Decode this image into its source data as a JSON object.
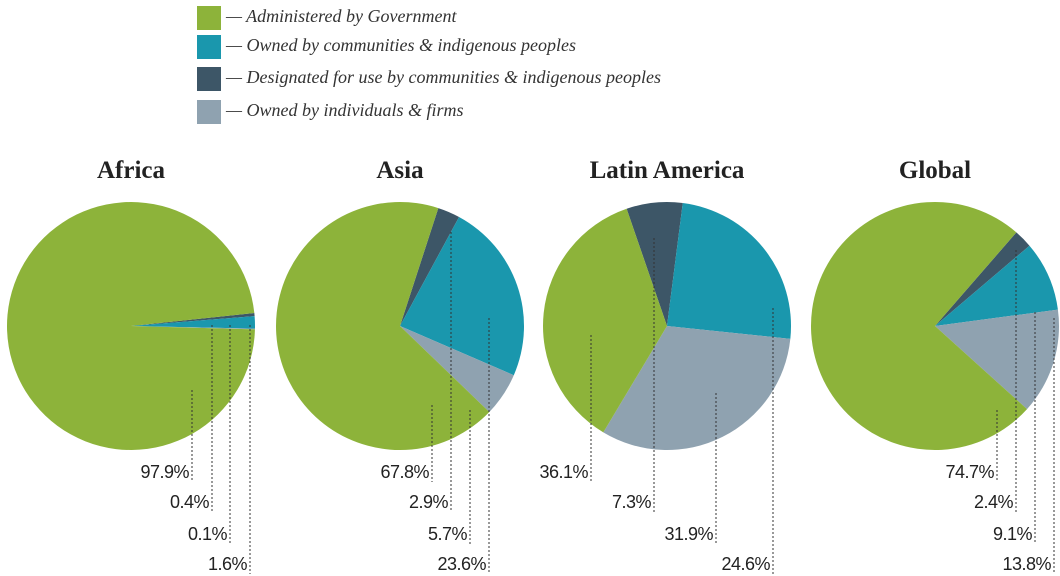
{
  "legend": {
    "series": [
      {
        "name": "— Administered by Government",
        "color": "#8db33a"
      },
      {
        "name": "— Owned by communities & indigenous peoples",
        "color": "#1a97ad"
      },
      {
        "name": "— Designated for use by communities & indigenous peoples",
        "color": "#3d5667"
      },
      {
        "name": "— Owned by individuals & firms",
        "color": "#8fa2b0"
      }
    ]
  },
  "chart_data": [
    {
      "type": "pie",
      "title": "Africa",
      "values": [
        97.9,
        1.6,
        0.4,
        0.1
      ],
      "value_labels": [
        "97.9%",
        "1.6%",
        "0.4%",
        "0.1%"
      ]
    },
    {
      "type": "pie",
      "title": "Asia",
      "values": [
        67.8,
        23.6,
        2.9,
        5.7
      ],
      "value_labels": [
        "67.8%",
        "23.6%",
        "2.9%",
        "5.7%"
      ]
    },
    {
      "type": "pie",
      "title": "Latin America",
      "values": [
        36.1,
        24.6,
        7.3,
        31.9
      ],
      "value_labels": [
        "36.1%",
        "24.6%",
        "7.3%",
        "31.9%"
      ]
    },
    {
      "type": "pie",
      "title": "Global",
      "values": [
        74.7,
        9.1,
        2.4,
        13.8
      ],
      "value_labels": [
        "74.7%",
        "9.1%",
        "2.4%",
        "13.8%"
      ]
    }
  ]
}
